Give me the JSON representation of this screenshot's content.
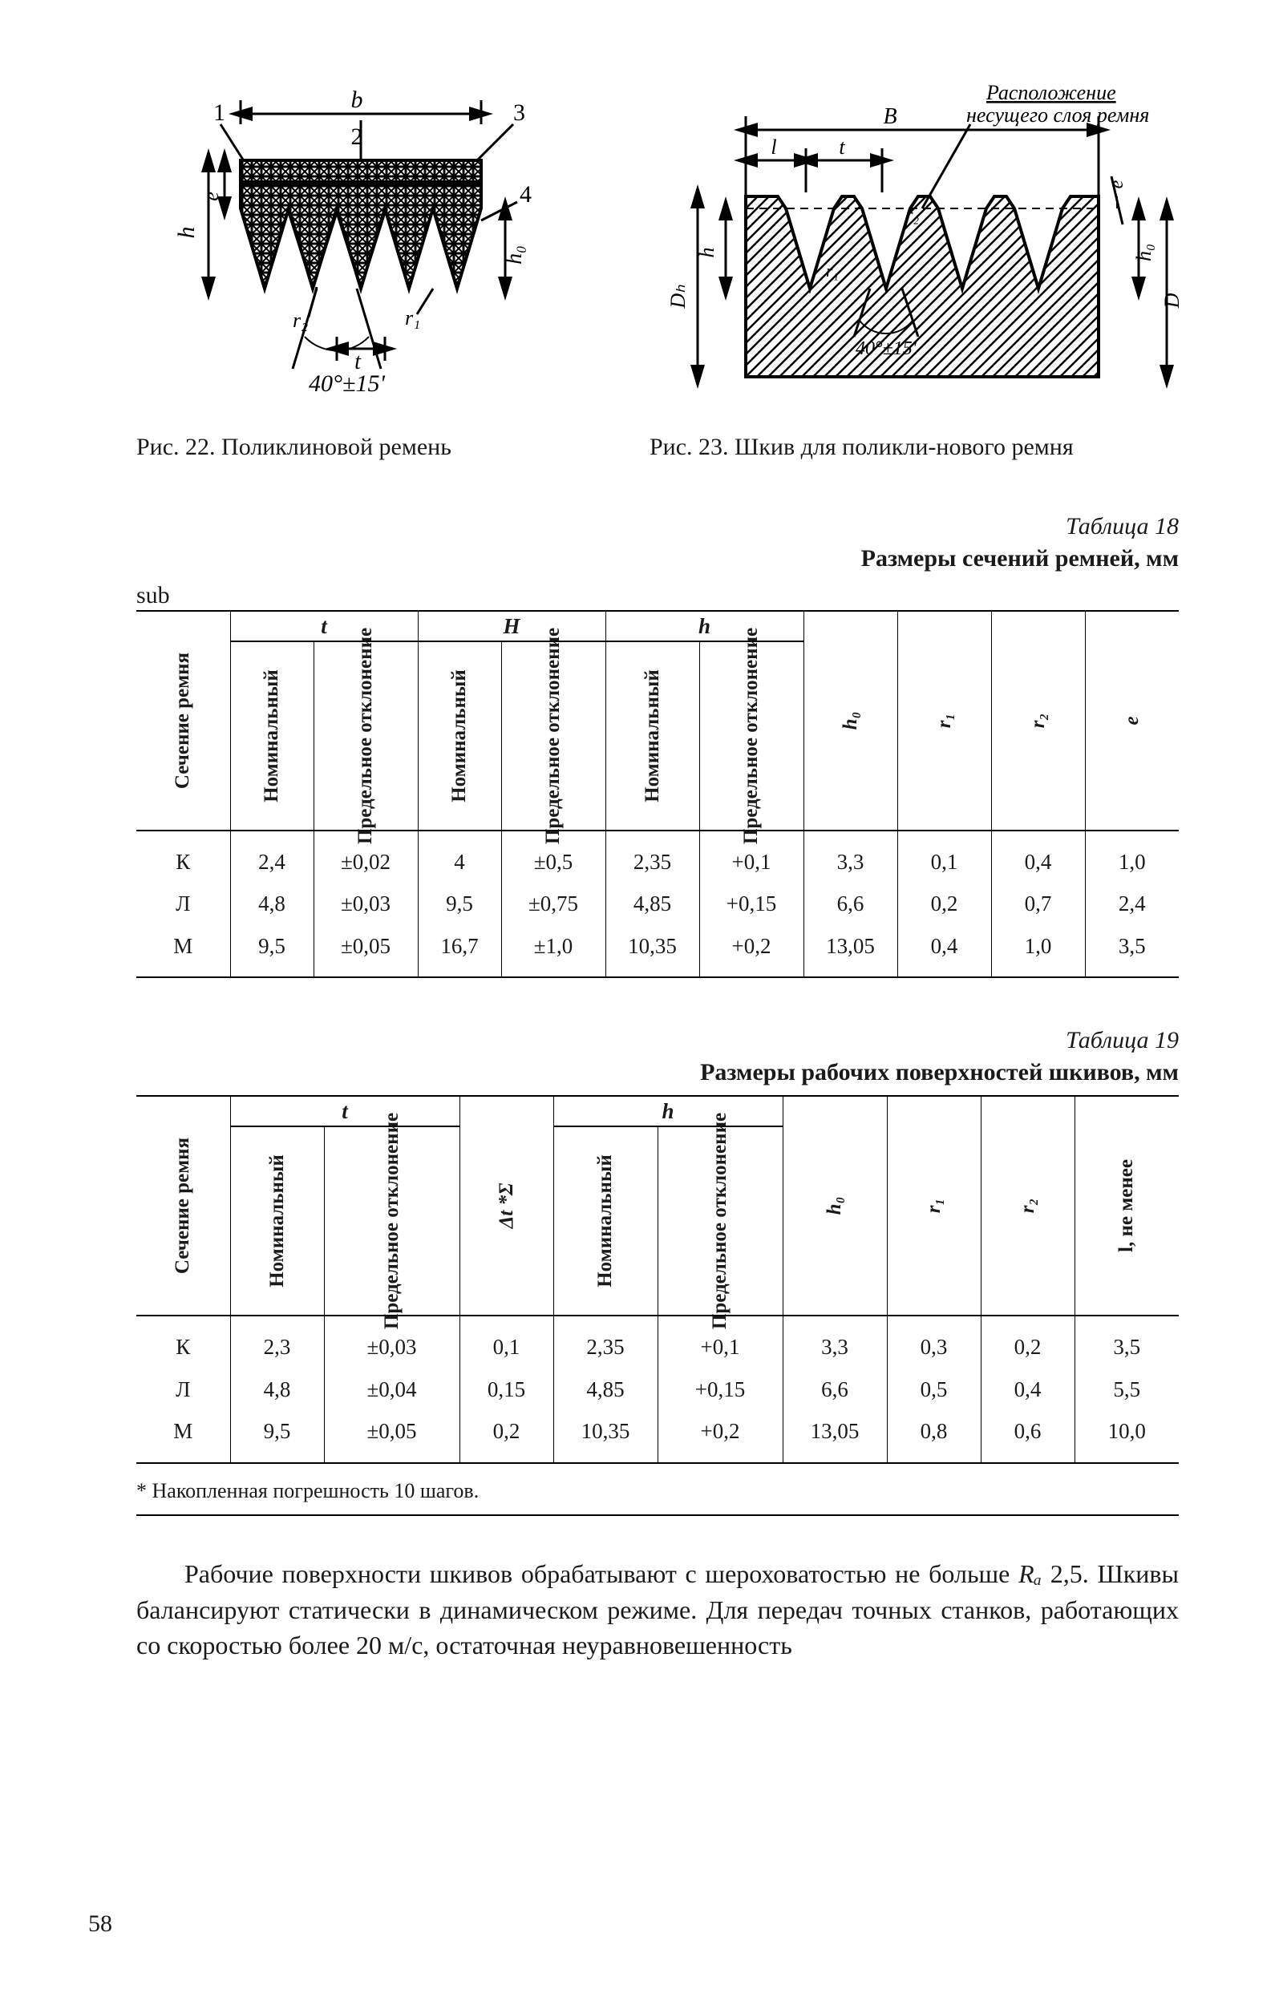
{
  "fig22": {
    "caption": "Рис. 22. Поликлиновой ремень",
    "labels": {
      "b": "b",
      "one": "1",
      "two": "2",
      "three": "3",
      "four": "4",
      "h": "h",
      "e": "e",
      "t": "t",
      "angle": "40°±15'",
      "h0": "h₀",
      "r1": "r₁",
      "r2": "r₂"
    }
  },
  "fig23": {
    "caption": "Рис. 23. Шкив для поликли-нового ремня",
    "overtext1": "Расположение",
    "overtext2": "несущего слоя ремня",
    "labels": {
      "B": "В",
      "l": "l",
      "t": "t",
      "h": "h",
      "angle": "40°±15'",
      "e": "e",
      "h0": "h₀",
      "D": "D",
      "DH": "Dₕ",
      "r1": "r₁",
      "r2": "r₂"
    }
  },
  "table18": {
    "pre": "Таблица 18",
    "title": "Размеры сечений ремней, мм",
    "groupHeaders": {
      "t": "t",
      "H": "H",
      "h": "h"
    },
    "head": {
      "sec": "Сечение ремня",
      "nom": "Номинальный",
      "dev": "Предельное\nотклонение",
      "h0": "h₀",
      "r1": "r₁",
      "r2": "r₂",
      "e": "e"
    },
    "rows": [
      {
        "sec": "К",
        "t_n": "2,4",
        "t_d": "±0,02",
        "H_n": "4",
        "H_d": "±0,5",
        "h_n": "2,35",
        "h_d": "+0,1",
        "h0": "3,3",
        "r1": "0,1",
        "r2": "0,4",
        "e": "1,0"
      },
      {
        "sec": "Л",
        "t_n": "4,8",
        "t_d": "±0,03",
        "H_n": "9,5",
        "H_d": "±0,75",
        "h_n": "4,85",
        "h_d": "+0,15",
        "h0": "6,6",
        "r1": "0,2",
        "r2": "0,7",
        "e": "2,4"
      },
      {
        "sec": "М",
        "t_n": "9,5",
        "t_d": "±0,05",
        "H_n": "16,7",
        "H_d": "±1,0",
        "h_n": "10,35",
        "h_d": "+0,2",
        "h0": "13,05",
        "r1": "0,4",
        "r2": "1,0",
        "e": "3,5"
      }
    ]
  },
  "table19": {
    "pre": "Таблица  19",
    "title": "Размеры рабочих поверхностей шкивов, мм",
    "groupHeaders": {
      "t": "t",
      "h": "h"
    },
    "head": {
      "sec": "Сечение ремня",
      "nom": "Номинальный",
      "dev": "Предельное\nотклонение",
      "dt": "Δt *Σ",
      "h0": "h₀",
      "r1": "r₁",
      "r2": "r₂",
      "l": "l, не менее"
    },
    "rows": [
      {
        "sec": "К",
        "t_n": "2,3",
        "t_d": "±0,03",
        "dt": "0,1",
        "h_n": "2,35",
        "h_d": "+0,1",
        "h0": "3,3",
        "r1": "0,3",
        "r2": "0,2",
        "l": "3,5"
      },
      {
        "sec": "Л",
        "t_n": "4,8",
        "t_d": "±0,04",
        "dt": "0,15",
        "h_n": "4,85",
        "h_d": "+0,15",
        "h0": "6,6",
        "r1": "0,5",
        "r2": "0,4",
        "l": "5,5"
      },
      {
        "sec": "М",
        "t_n": "9,5",
        "t_d": "±0,05",
        "dt": "0,2",
        "h_n": "10,35",
        "h_d": "+0,2",
        "h0": "13,05",
        "r1": "0,8",
        "r2": "0,6",
        "l": "10,0"
      }
    ],
    "footnote": "* Накопленная погрешность 10 шагов."
  },
  "paragraph": {
    "t1": "Рабочие поверхности шкивов обрабатывают с шерохова­тостью не больше ",
    "ra": "Rₐ",
    "t2": " 2,5. Шкивы балансируют статически в ди­намическом режиме. Для передач точных станков, работающих со скоростью более 20 м/с, остаточная неуравновешенность"
  },
  "pageNumber": "58",
  "style": {
    "ink": "#1a1a1a",
    "background": "#ffffff",
    "tableFontSize": 27,
    "bodyFontSize": 32
  }
}
